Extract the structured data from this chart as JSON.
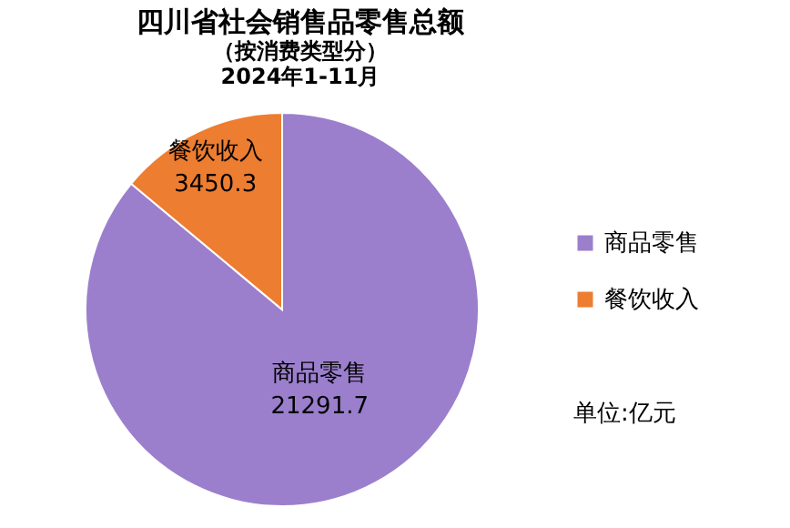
{
  "chart_data": {
    "type": "pie",
    "title": "四川省社会销售品零售总额",
    "subtitle": "（按消费类型分）",
    "categories": [
      "商品零售",
      "餐饮收入"
    ],
    "values": [
      21291.7,
      3450.3
    ],
    "colors": [
      "#9b7fcd",
      "#ed7d31"
    ],
    "data_labels": true,
    "legend": "right",
    "annotations": [
      "2024年1-11月",
      "单位:亿元"
    ]
  }
}
